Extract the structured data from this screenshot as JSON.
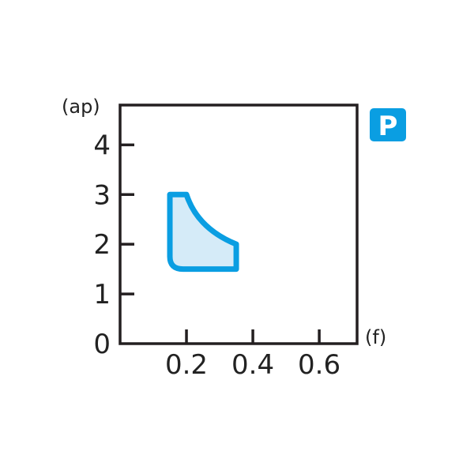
{
  "chart_data": {
    "type": "area",
    "xlabel": "(f)",
    "ylabel": "(ap)",
    "xlim": [
      0,
      0.714
    ],
    "ylim": [
      0,
      4.8
    ],
    "x_ticks": [
      0.2,
      0.4,
      0.6
    ],
    "x_tick_labels": [
      "0.2",
      "0.4",
      "0.6"
    ],
    "y_ticks": [
      0,
      1,
      2,
      3,
      4
    ],
    "y_tick_labels": [
      "0",
      "1",
      "2",
      "3",
      "4"
    ],
    "grid": false,
    "region": {
      "points": [
        [
          0.15,
          3.0
        ],
        [
          0.2,
          3.0
        ],
        [
          0.35,
          2.0
        ],
        [
          0.35,
          1.5
        ],
        [
          0.19,
          1.5
        ],
        [
          0.15,
          1.75
        ]
      ],
      "stroke_color": "#0a9ee2",
      "fill_color": "#d5ebf8"
    },
    "badge": {
      "text": "P",
      "color": "#0a9ee2"
    }
  }
}
